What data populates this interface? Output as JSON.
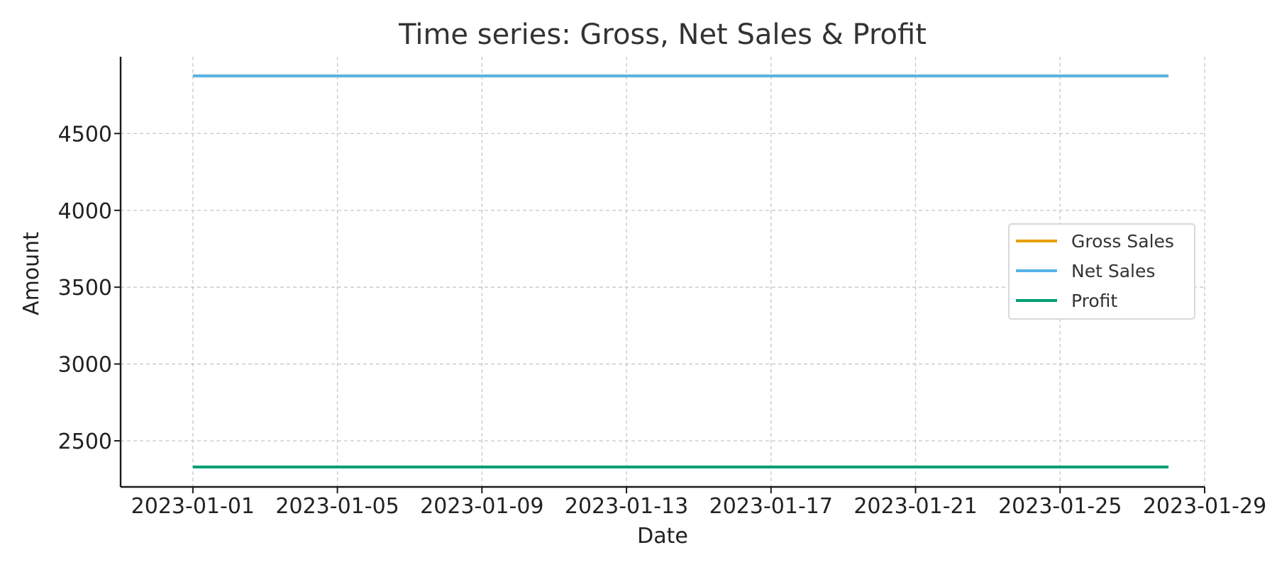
{
  "chart_data": {
    "type": "line",
    "title": "Time series: Gross, Net Sales & Profit",
    "xlabel": "Date",
    "ylabel": "Amount",
    "x": [
      "2023-01-01",
      "2023-01-02",
      "2023-01-03",
      "2023-01-04",
      "2023-01-05",
      "2023-01-06",
      "2023-01-07",
      "2023-01-08",
      "2023-01-09",
      "2023-01-10",
      "2023-01-11",
      "2023-01-12",
      "2023-01-13",
      "2023-01-14",
      "2023-01-15",
      "2023-01-16",
      "2023-01-17",
      "2023-01-18",
      "2023-01-19",
      "2023-01-20",
      "2023-01-21",
      "2023-01-22",
      "2023-01-23",
      "2023-01-24",
      "2023-01-25",
      "2023-01-26",
      "2023-01-27",
      "2023-01-28"
    ],
    "xlim": [
      "2022-12-30",
      "2023-01-29"
    ],
    "x_ticks": [
      "2023-01-01",
      "2023-01-05",
      "2023-01-09",
      "2023-01-13",
      "2023-01-17",
      "2023-01-21",
      "2023-01-25",
      "2023-01-29"
    ],
    "ylim": [
      2200,
      5000
    ],
    "y_ticks": [
      2500,
      3000,
      3500,
      4000,
      4500
    ],
    "y_tick_labels": [
      "2500",
      "3000",
      "3500",
      "4000",
      "4500"
    ],
    "grid": true,
    "legend_position": "center-right",
    "series": [
      {
        "name": "Gross Sales",
        "color": "#E69F00",
        "values": [
          4875,
          4875,
          4875,
          4875,
          4875,
          4875,
          4875,
          4875,
          4875,
          4875,
          4875,
          4875,
          4875,
          4875,
          4875,
          4875,
          4875,
          4875,
          4875,
          4875,
          4875,
          4875,
          4875,
          4875,
          4875,
          4875,
          4875,
          4875
        ]
      },
      {
        "name": "Net Sales",
        "color": "#56B4E9",
        "values": [
          4875,
          4875,
          4875,
          4875,
          4875,
          4875,
          4875,
          4875,
          4875,
          4875,
          4875,
          4875,
          4875,
          4875,
          4875,
          4875,
          4875,
          4875,
          4875,
          4875,
          4875,
          4875,
          4875,
          4875,
          4875,
          4875,
          4875,
          4875
        ]
      },
      {
        "name": "Profit",
        "color": "#009E73",
        "values": [
          2330,
          2330,
          2330,
          2330,
          2330,
          2330,
          2330,
          2330,
          2330,
          2330,
          2330,
          2330,
          2330,
          2330,
          2330,
          2330,
          2330,
          2330,
          2330,
          2330,
          2330,
          2330,
          2330,
          2330,
          2330,
          2330,
          2330,
          2330
        ]
      }
    ]
  }
}
